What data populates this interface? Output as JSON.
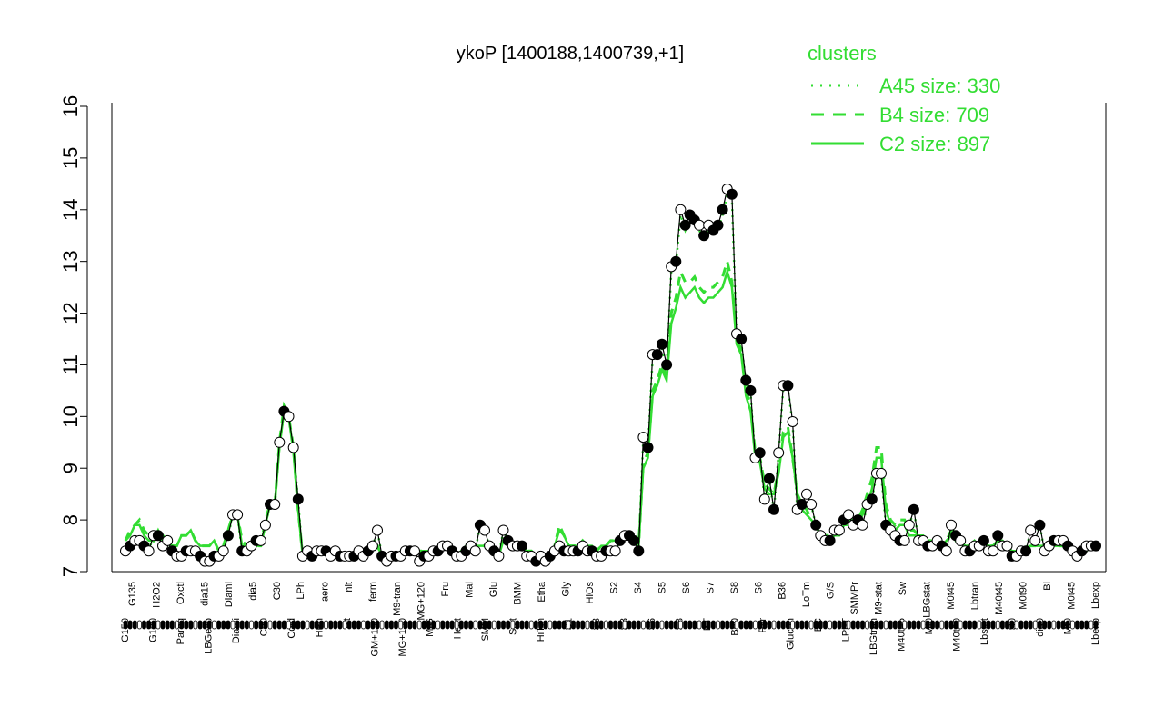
{
  "chart_data": {
    "type": "line",
    "title": "ykoP [1400188,1400739,+1]",
    "xlabel": "",
    "ylabel": "",
    "ylim": [
      7,
      16
    ],
    "yticks": [
      7,
      8,
      9,
      10,
      11,
      12,
      13,
      14,
      15,
      16
    ],
    "grid": false,
    "legend": {
      "title": "clusters",
      "placement": "top-right",
      "entries": [
        {
          "label": "A45 size: 330",
          "style": "dotted"
        },
        {
          "label": "B4 size: 709",
          "style": "dashed"
        },
        {
          "label": "C2 size: 897",
          "style": "solid"
        }
      ]
    },
    "upper_labels": [
      "G135",
      "H2O2",
      "Oxctl",
      "dia15",
      "Diami",
      "dia5",
      "C30",
      "LPh",
      "aero",
      "nit",
      "ferm",
      "M9-tran",
      "MG+120",
      "Fru",
      "Mal",
      "Glu",
      "BMM",
      "Etha",
      "Gly",
      "HiOs",
      "S2",
      "S4",
      "S5",
      "S6",
      "S7",
      "S8",
      "S6",
      "B36",
      "LoTm",
      "G/S",
      "SMMPr",
      "M9-stat",
      "Sw",
      "LBGstat",
      "M0t45",
      "Lbtran",
      "M40t45",
      "M0t90",
      "Bl",
      "M0t45",
      "Lbexp"
    ],
    "lower_labels": [
      "G150",
      "G180",
      "Paraq",
      "LBGexp",
      "Diami",
      "C90",
      "Cold",
      "HPh",
      "nit",
      "GM+150",
      "MG+150",
      "M/G",
      "Heat",
      "SMM",
      "Salt",
      "HiTm",
      "S1",
      "S3",
      "S3",
      "S6",
      "S8",
      "BT",
      "B60",
      "Pyr",
      "Glucon",
      "BC",
      "LPhT",
      "LBGtran",
      "M40t45",
      "Mt0",
      "M40t90",
      "Lbstat",
      "S0",
      "dia0",
      "Mt0",
      "Lbexp"
    ],
    "series": [
      {
        "values": [
          7.4,
          7.5,
          7.6,
          7.6,
          7.5,
          7.4,
          7.7,
          7.7,
          7.5,
          7.6,
          7.4,
          7.3,
          7.3,
          7.4,
          7.4,
          7.4,
          7.3,
          7.2,
          7.2,
          7.3,
          7.3,
          7.4,
          7.7,
          8.1,
          8.1,
          7.4,
          7.4,
          7.5,
          7.6,
          7.6,
          7.9,
          8.3,
          8.3,
          9.5,
          10.1,
          10.0,
          9.4,
          8.4,
          7.3,
          7.4,
          7.3,
          7.4,
          7.4,
          7.4,
          7.3,
          7.4,
          7.3,
          7.3,
          7.3,
          7.3,
          7.4,
          7.3,
          7.4,
          7.5,
          7.8,
          7.3,
          7.2,
          7.3,
          7.3,
          7.3,
          7.4,
          7.4,
          7.4,
          7.2,
          7.3,
          7.3,
          7.4,
          7.4,
          7.5,
          7.5,
          7.4,
          7.3,
          7.3,
          7.4,
          7.5,
          7.4,
          7.9,
          7.8,
          7.5,
          7.4,
          7.3,
          7.8,
          7.6,
          7.5,
          7.5,
          7.5,
          7.3,
          7.3,
          7.2,
          7.3,
          7.2,
          7.3,
          7.4,
          7.5,
          7.4,
          7.4,
          7.4,
          7.4,
          7.5,
          7.4,
          7.4,
          7.3,
          7.3,
          7.4,
          7.4,
          7.4,
          7.6,
          7.7,
          7.7,
          7.6,
          7.4,
          9.6,
          9.4,
          11.2,
          11.2,
          11.4,
          11.0,
          12.9,
          13.0,
          14.0,
          13.7,
          13.9,
          13.8,
          13.7,
          13.5,
          13.7,
          13.6,
          13.7,
          14.0,
          14.4,
          14.3,
          11.6,
          11.5,
          10.7,
          10.5,
          9.2,
          9.3,
          8.4,
          8.8,
          8.2,
          9.3,
          10.6,
          10.6,
          9.9,
          8.2,
          8.3,
          8.5,
          8.3,
          7.9,
          7.7,
          7.6,
          7.6,
          7.8,
          7.8,
          8.0,
          8.1,
          7.9,
          8.0,
          7.9,
          8.3,
          8.4,
          8.9,
          8.9,
          7.9,
          7.8,
          7.7,
          7.6,
          7.6,
          7.9,
          8.2,
          7.6,
          7.6,
          7.5,
          7.5,
          7.6,
          7.5,
          7.4,
          7.9,
          7.7,
          7.6,
          7.4,
          7.4,
          7.5,
          7.5,
          7.6,
          7.4,
          7.4,
          7.7,
          7.5,
          7.5,
          7.3,
          7.3,
          7.4,
          7.4,
          7.8,
          7.6,
          7.9,
          7.4,
          7.5,
          7.6,
          7.6,
          7.6,
          7.5,
          7.4,
          7.3,
          7.4,
          7.5,
          7.5,
          7.5
        ]
      },
      {
        "values": [
          7.6,
          7.8,
          7.9,
          8.0,
          7.8,
          7.7,
          7.6,
          7.8,
          7.7,
          7.6,
          7.5,
          7.5,
          7.7,
          7.7,
          7.8,
          7.6,
          7.5,
          7.5,
          7.5,
          7.6,
          7.4,
          7.5,
          7.8,
          8.1,
          8.1,
          7.6,
          7.5,
          7.5,
          7.5,
          7.5,
          8.0,
          8.3,
          8.3,
          9.5,
          10.2,
          10.0,
          9.4,
          8.2,
          7.3,
          7.4,
          7.3,
          7.4,
          7.4,
          7.4,
          7.3,
          7.4,
          7.3,
          7.3,
          7.3,
          7.3,
          7.4,
          7.3,
          7.4,
          7.5,
          7.5,
          7.3,
          7.3,
          7.3,
          7.3,
          7.3,
          7.4,
          7.4,
          7.4,
          7.4,
          7.4,
          7.4,
          7.4,
          7.4,
          7.5,
          7.5,
          7.4,
          7.3,
          7.4,
          7.5,
          7.5,
          7.5,
          7.5,
          7.5,
          7.5,
          7.4,
          7.3,
          7.6,
          7.6,
          7.5,
          7.5,
          7.5,
          7.4,
          7.4,
          7.3,
          7.3,
          7.2,
          7.3,
          7.5,
          7.9,
          7.7,
          7.5,
          7.5,
          7.5,
          7.6,
          7.5,
          7.5,
          7.4,
          7.5,
          7.5,
          7.6,
          7.6,
          7.6,
          7.7,
          7.7,
          7.6,
          7.5,
          9.1,
          9.3,
          10.5,
          10.7,
          11.0,
          10.8,
          12.0,
          12.3,
          12.8,
          12.6,
          12.6,
          12.7,
          12.5,
          12.4,
          12.5,
          12.5,
          12.6,
          12.7,
          13.0,
          12.6,
          11.5,
          11.3,
          10.5,
          10.2,
          9.3,
          9.2,
          8.7,
          8.6,
          8.5,
          9.0,
          9.7,
          9.8,
          9.2,
          8.5,
          8.3,
          8.2,
          8.0,
          7.9,
          7.7,
          7.7,
          7.7,
          7.8,
          7.8,
          7.9,
          8.0,
          8.0,
          8.0,
          8.2,
          8.5,
          8.8,
          9.4,
          9.4,
          8.3,
          8.0,
          7.9,
          8.0,
          8.0,
          7.8,
          7.8,
          7.7,
          7.7,
          7.6,
          7.6,
          7.6,
          7.5,
          7.6,
          7.8,
          7.6,
          7.6,
          7.5,
          7.5,
          7.6,
          7.5,
          7.6,
          7.5,
          7.5,
          7.6,
          7.6,
          7.5,
          7.4,
          7.4,
          7.4,
          7.4,
          7.5,
          7.5,
          7.6,
          7.5,
          7.5,
          7.5,
          7.5,
          7.5,
          7.5,
          7.4,
          7.4,
          7.4,
          7.4,
          7.5,
          7.5
        ]
      },
      {
        "values": [
          7.6,
          7.7,
          7.9,
          7.9,
          7.7,
          7.6,
          7.6,
          7.8,
          7.6,
          7.6,
          7.5,
          7.5,
          7.7,
          7.7,
          7.8,
          7.6,
          7.5,
          7.5,
          7.5,
          7.6,
          7.4,
          7.5,
          7.8,
          8.1,
          8.1,
          7.5,
          7.5,
          7.5,
          7.5,
          7.5,
          7.9,
          8.3,
          8.3,
          9.4,
          10.1,
          10.0,
          9.3,
          8.2,
          7.3,
          7.4,
          7.3,
          7.4,
          7.4,
          7.4,
          7.3,
          7.4,
          7.3,
          7.3,
          7.3,
          7.3,
          7.4,
          7.3,
          7.4,
          7.5,
          7.5,
          7.3,
          7.3,
          7.3,
          7.3,
          7.3,
          7.4,
          7.4,
          7.4,
          7.4,
          7.4,
          7.4,
          7.4,
          7.4,
          7.5,
          7.5,
          7.4,
          7.3,
          7.4,
          7.5,
          7.5,
          7.5,
          7.5,
          7.5,
          7.5,
          7.4,
          7.3,
          7.6,
          7.6,
          7.5,
          7.5,
          7.5,
          7.4,
          7.4,
          7.3,
          7.3,
          7.2,
          7.3,
          7.5,
          7.8,
          7.7,
          7.5,
          7.5,
          7.5,
          7.6,
          7.5,
          7.5,
          7.4,
          7.5,
          7.5,
          7.6,
          7.6,
          7.6,
          7.7,
          7.7,
          7.6,
          7.5,
          9.0,
          9.2,
          10.4,
          10.6,
          10.9,
          10.7,
          11.8,
          12.1,
          12.5,
          12.3,
          12.4,
          12.5,
          12.3,
          12.2,
          12.3,
          12.3,
          12.4,
          12.5,
          12.8,
          12.5,
          11.4,
          11.2,
          10.4,
          10.1,
          9.2,
          9.1,
          8.6,
          8.5,
          8.5,
          8.9,
          9.6,
          9.7,
          9.2,
          8.5,
          8.2,
          8.1,
          8.0,
          7.9,
          7.7,
          7.6,
          7.6,
          7.7,
          7.7,
          7.9,
          7.9,
          7.9,
          7.9,
          8.1,
          8.3,
          8.6,
          9.2,
          9.2,
          8.2,
          7.9,
          7.8,
          7.9,
          7.9,
          7.7,
          7.7,
          7.7,
          7.7,
          7.6,
          7.6,
          7.6,
          7.5,
          7.6,
          7.7,
          7.6,
          7.6,
          7.5,
          7.5,
          7.6,
          7.5,
          7.6,
          7.5,
          7.5,
          7.6,
          7.6,
          7.5,
          7.4,
          7.4,
          7.4,
          7.4,
          7.5,
          7.5,
          7.5,
          7.5,
          7.5,
          7.5,
          7.5,
          7.5,
          7.5,
          7.4,
          7.4,
          7.4,
          7.4,
          7.5,
          7.5
        ]
      }
    ]
  },
  "colors": {
    "observed": "#000000",
    "cluster": "#33dd33",
    "marker_fill": "#ffffff"
  }
}
